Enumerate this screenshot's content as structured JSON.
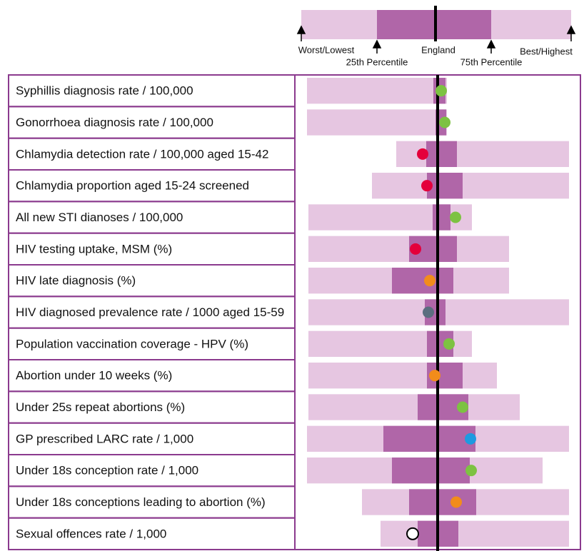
{
  "chart_data": {
    "type": "spine",
    "legend": {
      "worst": "Worst/Lowest",
      "q25": "25th Percentile",
      "england": "England",
      "q75": "75th Percentile",
      "best": "Best/Highest"
    },
    "xlim": [
      0,
      400
    ],
    "england": 200,
    "rows": [
      {
        "label": "Syphillis diagnosis rate / 100,000",
        "worst": 17,
        "q25": 194,
        "q75": 211,
        "best": 213,
        "value": 205,
        "color": "#7dc242"
      },
      {
        "label": "Gonorrhoea diagnosis rate / 100,000",
        "worst": 17,
        "q25": 197,
        "q75": 212,
        "best": 213,
        "value": 210,
        "color": "#7dc242"
      },
      {
        "label": "Chlamydia detection rate / 100,000 aged 15-42",
        "worst": 142,
        "q25": 184,
        "q75": 227,
        "best": 384,
        "value": 179,
        "color": "#e4003b"
      },
      {
        "label": "Chlamydia proportion aged 15-24 screened",
        "worst": 108,
        "q25": 185,
        "q75": 235,
        "best": 384,
        "value": 185,
        "color": "#e4003b"
      },
      {
        "label": "All new STI dianoses / 100,000",
        "worst": 19,
        "q25": 193,
        "q75": 218,
        "best": 248,
        "value": 225,
        "color": "#7dc242"
      },
      {
        "label": "HIV testing uptake, MSM (%)",
        "worst": 19,
        "q25": 160,
        "q75": 227,
        "best": 300,
        "value": 169,
        "color": "#e4003b"
      },
      {
        "label": "HIV late diagnosis (%)",
        "worst": 19,
        "q25": 136,
        "q75": 222,
        "best": 300,
        "value": 189,
        "color": "#f28c1b"
      },
      {
        "label": "HIV diagnosed prevalence rate / 1000 aged 15-59",
        "worst": 19,
        "q25": 182,
        "q75": 211,
        "best": 384,
        "value": 187,
        "color": "#5b6e7f"
      },
      {
        "label": "Population vaccination coverage - HPV (%)",
        "worst": 19,
        "q25": 185,
        "q75": 222,
        "best": 248,
        "value": 216,
        "color": "#7dc242"
      },
      {
        "label": "Abortion under 10 weeks (%)",
        "worst": 19,
        "q25": 185,
        "q75": 235,
        "best": 283,
        "value": 196,
        "color": "#f28c1b"
      },
      {
        "label": "Under 25s repeat abortions (%)",
        "worst": 19,
        "q25": 172,
        "q75": 243,
        "best": 315,
        "value": 235,
        "color": "#7dc242"
      },
      {
        "label": "GP prescribed LARC rate / 1,000",
        "worst": 17,
        "q25": 124,
        "q75": 253,
        "best": 384,
        "value": 246,
        "color": "#1e9ae0"
      },
      {
        "label": "Under 18s conception rate / 1,000",
        "worst": 17,
        "q25": 136,
        "q75": 245,
        "best": 347,
        "value": 247,
        "color": "#7dc242"
      },
      {
        "label": "Under 18s conceptions leading to abortion (%)",
        "worst": 94,
        "q25": 160,
        "q75": 254,
        "best": 384,
        "value": 226,
        "color": "#f28c1b"
      },
      {
        "label": "Sexual offences rate / 1,000",
        "worst": 120,
        "q25": 172,
        "q75": 229,
        "best": 384,
        "value": 165,
        "color": "#ffffff"
      }
    ]
  }
}
